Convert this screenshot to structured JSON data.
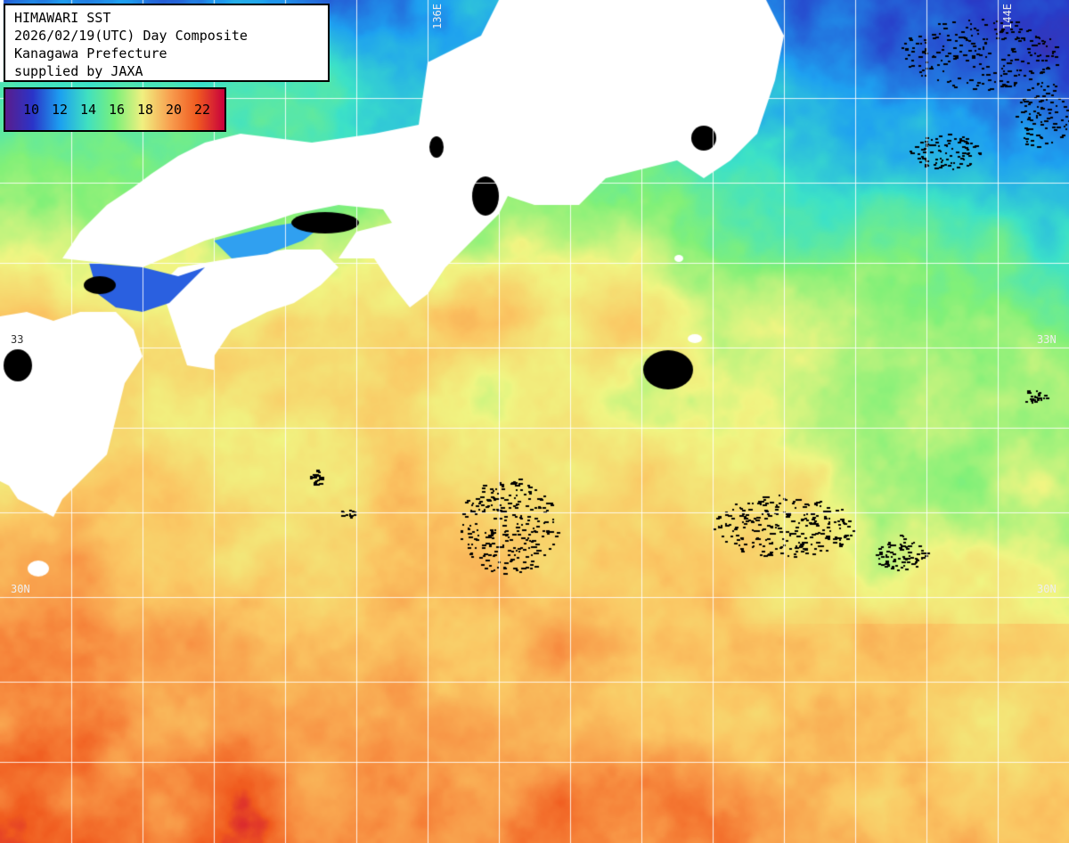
{
  "header": {
    "line1": "HIMAWARI SST",
    "line2": "2026/02/19(UTC) Day Composite",
    "line3": "Kanagawa Prefecture",
    "line4": "supplied by JAXA"
  },
  "legend": {
    "labels": [
      "10",
      "12",
      "14",
      "16",
      "18",
      "20",
      "22"
    ],
    "colors": [
      "#5a1d8c",
      "#2a34c8",
      "#1ca0f0",
      "#40e0c0",
      "#7af07a",
      "#f0f080",
      "#f8a050",
      "#f05a20",
      "#c8003c"
    ]
  },
  "grid_labels": {
    "lon_136": "136E",
    "lon_144": "144E",
    "lat_33_left": "33",
    "lat_33_right": "33N",
    "lat_30_left": "30N",
    "lat_30_right": "30N"
  },
  "colors": {
    "land": "#ffffff",
    "cloud": "#000000",
    "grid": "#ffffff"
  }
}
